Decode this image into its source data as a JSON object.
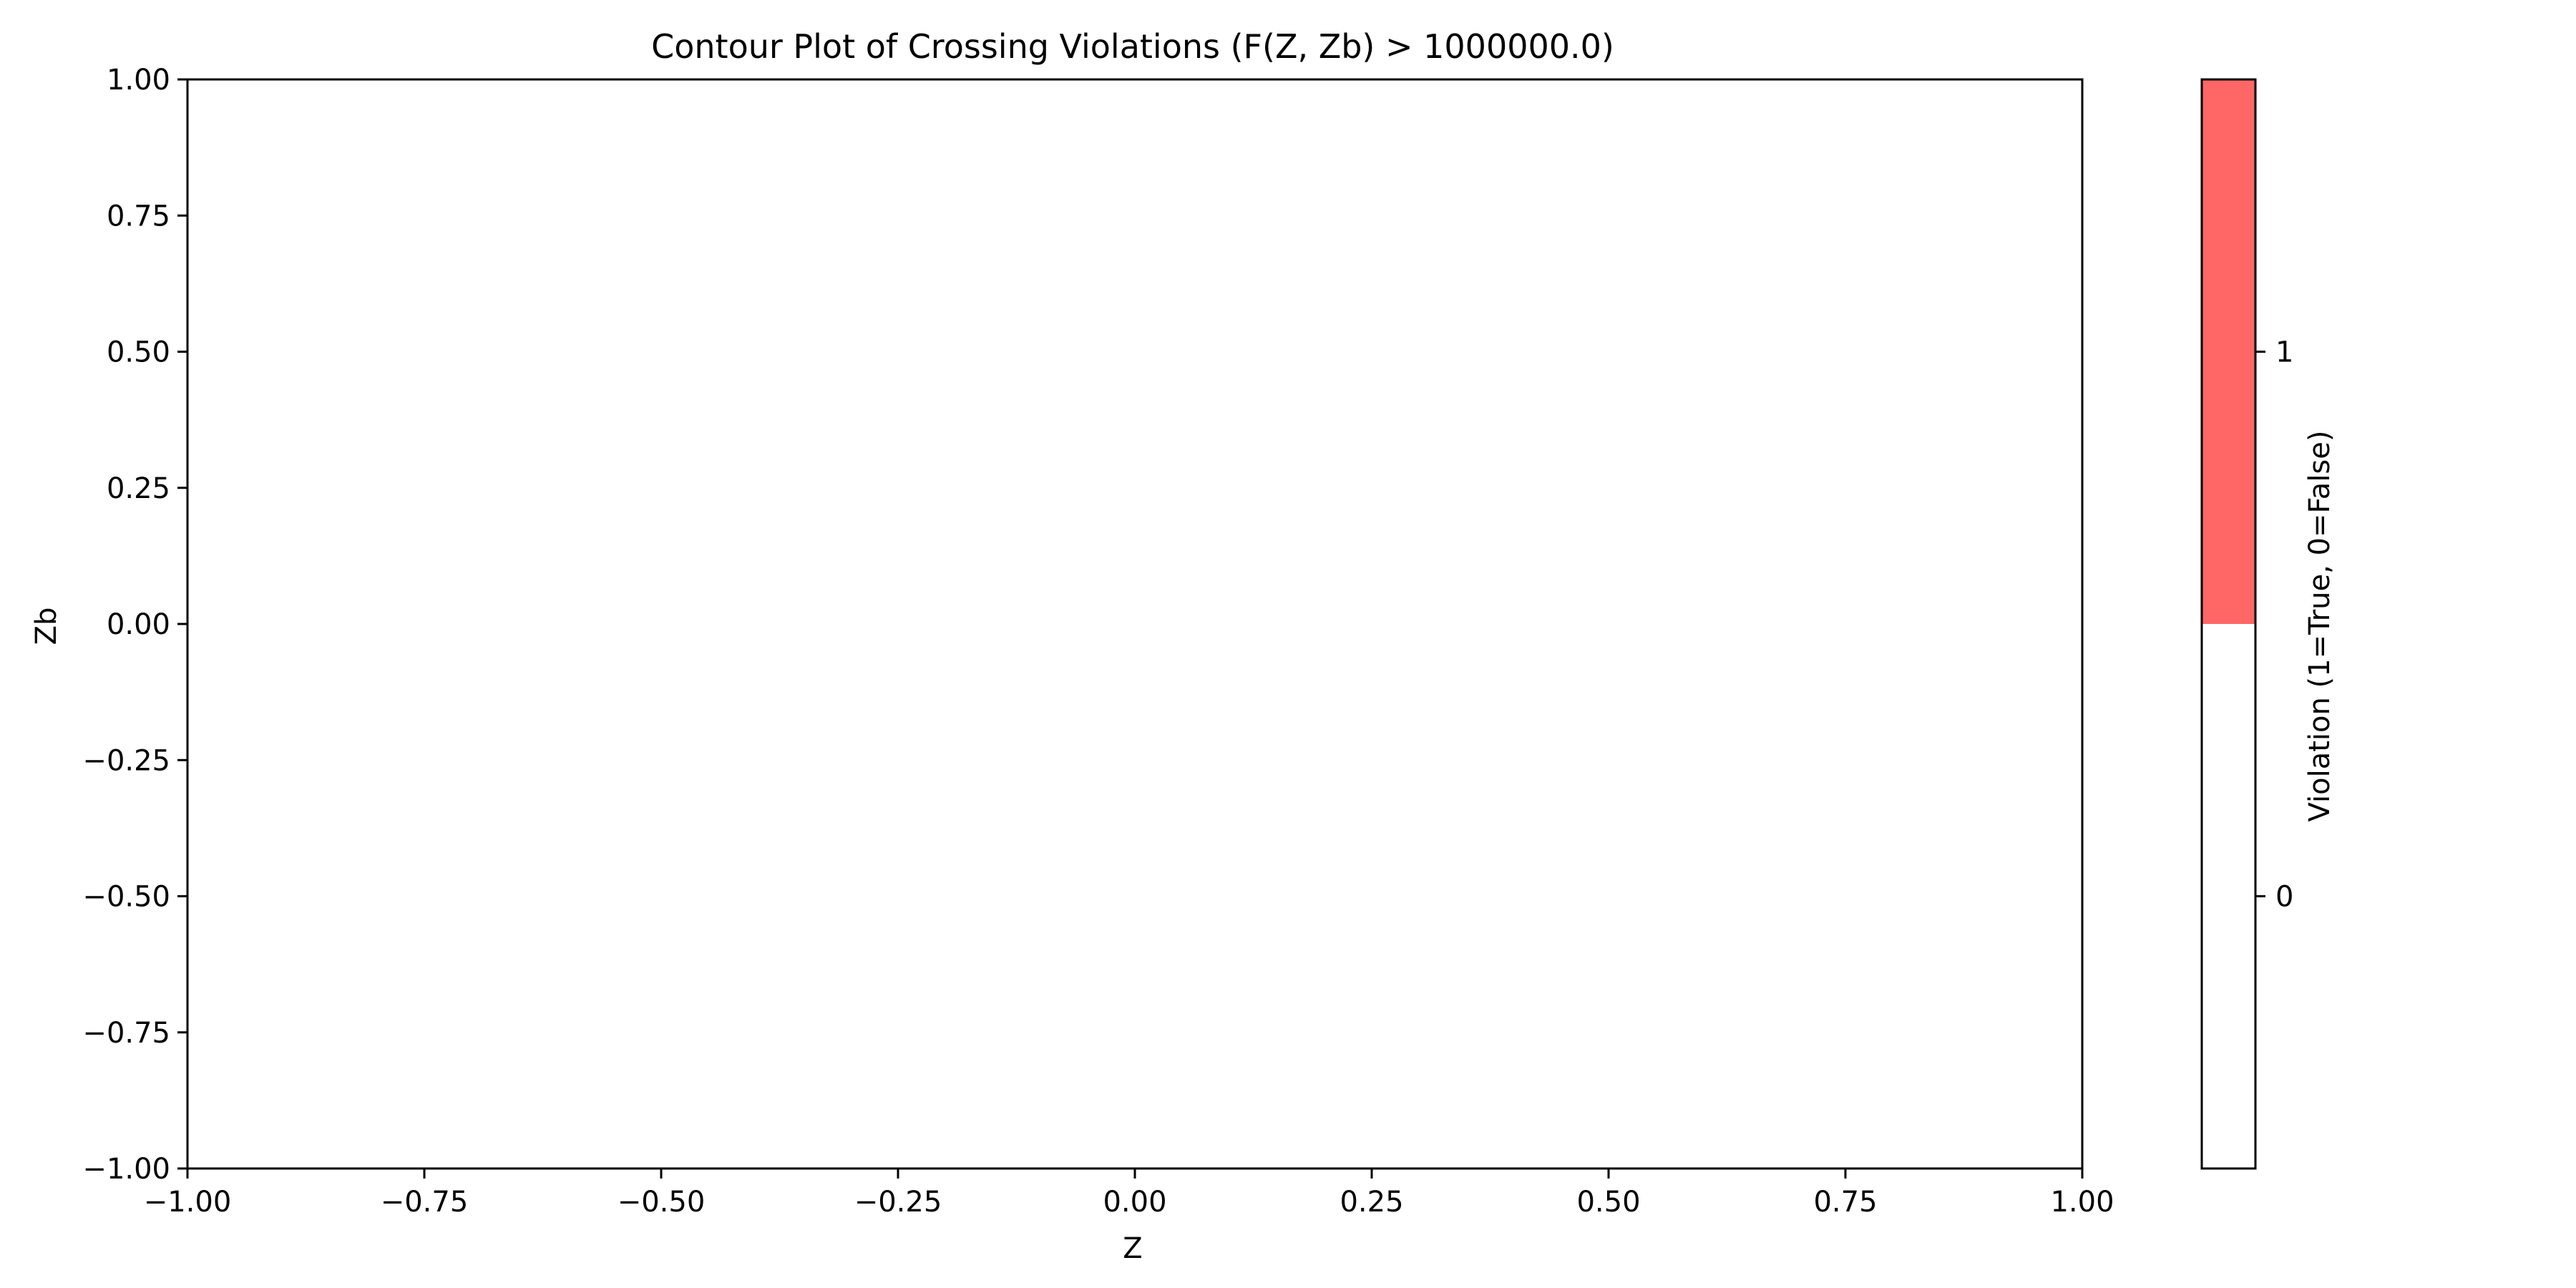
{
  "chart_data": {
    "type": "heatmap",
    "title": "Contour Plot of Crossing Violations (F(Z, Zb) > 1000000.0)",
    "xlabel": "Z",
    "ylabel": "Zb",
    "xlim": [
      -1.0,
      1.0
    ],
    "ylim": [
      -1.0,
      1.0
    ],
    "xticks": [
      -1.0,
      -0.75,
      -0.5,
      -0.25,
      0.0,
      0.25,
      0.5,
      0.75,
      1.0
    ],
    "xtick_labels": [
      "−1.00",
      "−0.75",
      "−0.50",
      "−0.25",
      "0.00",
      "0.25",
      "0.50",
      "0.75",
      "1.00"
    ],
    "yticks": [
      -1.0,
      -0.75,
      -0.5,
      -0.25,
      0.0,
      0.25,
      0.5,
      0.75,
      1.0
    ],
    "ytick_labels": [
      "−1.00",
      "−0.75",
      "−0.50",
      "−0.25",
      "0.00",
      "0.25",
      "0.50",
      "0.75",
      "1.00"
    ],
    "grid": false,
    "violation_regions": [],
    "field_value": 0,
    "colorbar": {
      "label": "Violation (1=True, 0=False)",
      "range": [
        -0.5,
        1.5
      ],
      "levels": [
        {
          "from": -0.5,
          "to": 0.5,
          "color": "#ffffff"
        },
        {
          "from": 0.5,
          "to": 1.5,
          "color": "#ff6666"
        }
      ],
      "ticks": [
        0,
        1
      ],
      "tick_labels": [
        "0",
        "1"
      ]
    }
  }
}
